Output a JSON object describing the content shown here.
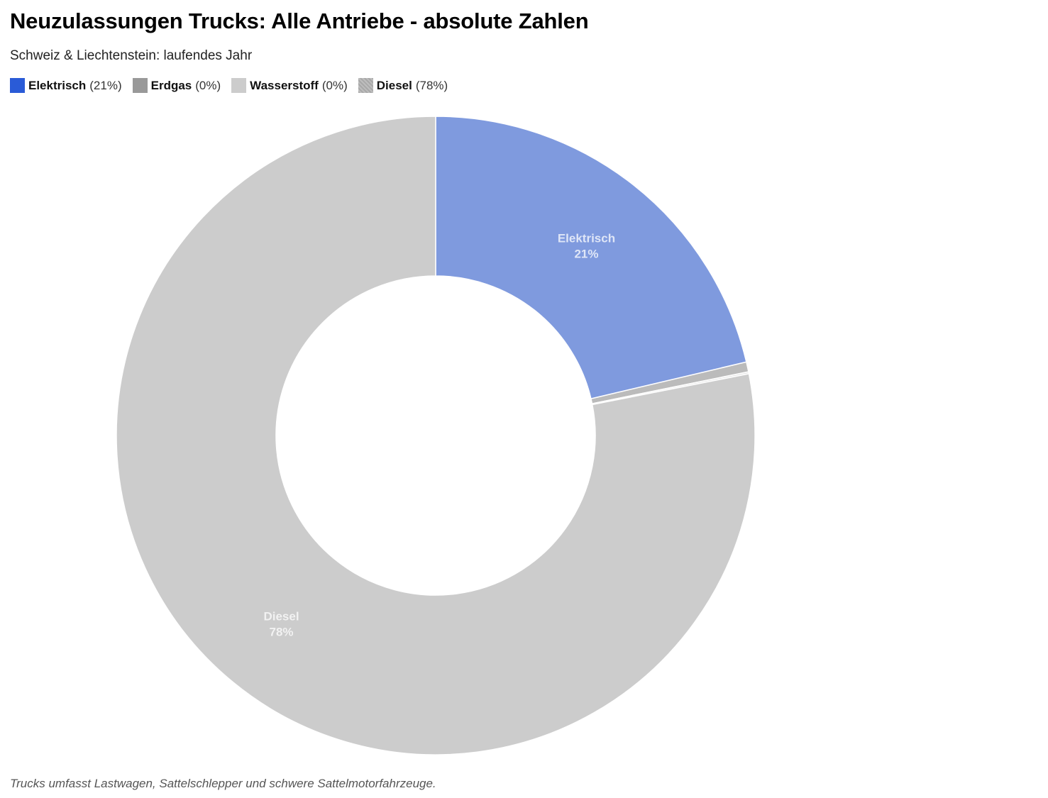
{
  "header": {
    "title": "Neuzulassungen Trucks: Alle Antriebe - absolute Zahlen",
    "subtitle": "Schweiz & Liechtenstein: laufendes Jahr"
  },
  "legend": [
    {
      "name": "Elektrisch",
      "pct": "(21%)",
      "color": "#2a5bd7"
    },
    {
      "name": "Erdgas",
      "pct": "(0%)",
      "color": "#999999"
    },
    {
      "name": "Wasserstoff",
      "pct": "(0%)",
      "color": "#cccccc"
    },
    {
      "name": "Diesel",
      "pct": "(78%)",
      "color": "#aaaaaa"
    }
  ],
  "chart_data": {
    "type": "pie",
    "variant": "donut",
    "title": "Neuzulassungen Trucks: Alle Antriebe - absolute Zahlen",
    "subtitle": "Schweiz & Liechtenstein: laufendes Jahr",
    "unit": "%",
    "slices": [
      {
        "name": "Elektrisch",
        "value": 21.3,
        "color": "#7f9ade",
        "label": "Elektrisch",
        "label_value": "21%"
      },
      {
        "name": "Erdgas",
        "value": 0.5,
        "color": "#bbbbbb",
        "label": "",
        "label_value": ""
      },
      {
        "name": "Wasserstoff",
        "value": 0.1,
        "color": "#e6e6e6",
        "label": "",
        "label_value": ""
      },
      {
        "name": "Diesel",
        "value": 78.1,
        "color": "#cccccc",
        "label": "Diesel",
        "label_value": "78%"
      }
    ],
    "legend_position": "top-left"
  },
  "footnote": "Trucks umfasst Lastwagen, Sattelschlepper und schwere Sattelmotorfahrzeuge."
}
